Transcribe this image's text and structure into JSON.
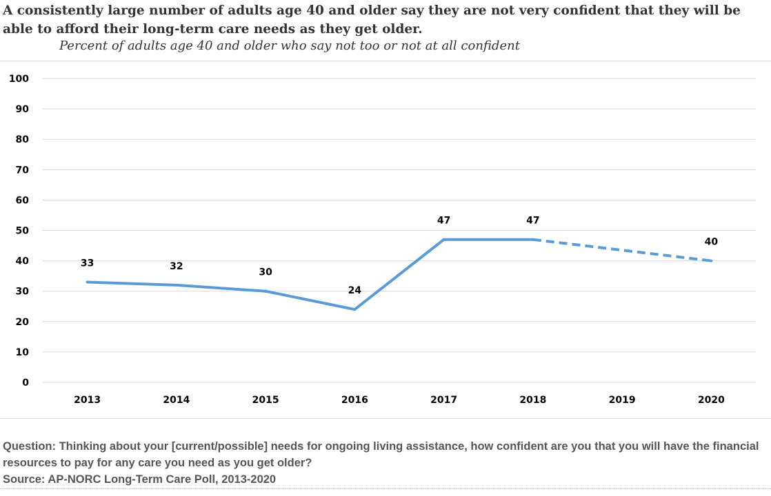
{
  "header": {
    "title": "A consistently large number of adults age 40 and older say they are not very confident that they will be able to afford their long-term care needs as they get older.",
    "subtitle": "Percent of adults age 40 and older who say not too or not at all confident"
  },
  "footer": {
    "question": "Question: Thinking about your [current/possible] needs for ongoing living assistance, how confident are you that you will have the financial resources to pay for any care you need as you get older?",
    "source": "Source: AP-NORC Long-Term Care Poll, 2013-2020"
  },
  "chart_data": {
    "type": "line",
    "title": "A consistently large number of adults age 40 and older say they are not very confident that they will be able to afford their long-term care needs as they get older.",
    "subtitle": "Percent of adults age 40 and older who say not too or not at all confident",
    "categories": [
      "2013",
      "2014",
      "2015",
      "2016",
      "2017",
      "2018",
      "2019",
      "2020"
    ],
    "series": [
      {
        "values": [
          33,
          32,
          30,
          24,
          47,
          47,
          null,
          40
        ],
        "color": "#5b9bd5"
      }
    ],
    "dashed_segment": {
      "from": "2018",
      "to": "2020"
    },
    "data_labels": [
      {
        "category": "2013",
        "value": "33"
      },
      {
        "category": "2014",
        "value": "32"
      },
      {
        "category": "2015",
        "value": "30"
      },
      {
        "category": "2016",
        "value": "24"
      },
      {
        "category": "2017",
        "value": "47"
      },
      {
        "category": "2018",
        "value": "47"
      },
      {
        "category": "2020",
        "value": "40"
      }
    ],
    "y_ticks": [
      "0",
      "10",
      "20",
      "30",
      "40",
      "50",
      "60",
      "70",
      "80",
      "90",
      "100"
    ],
    "ylim": [
      0,
      100
    ],
    "grid": true,
    "gridline_color": "#d9d9d9",
    "legend": "none"
  }
}
